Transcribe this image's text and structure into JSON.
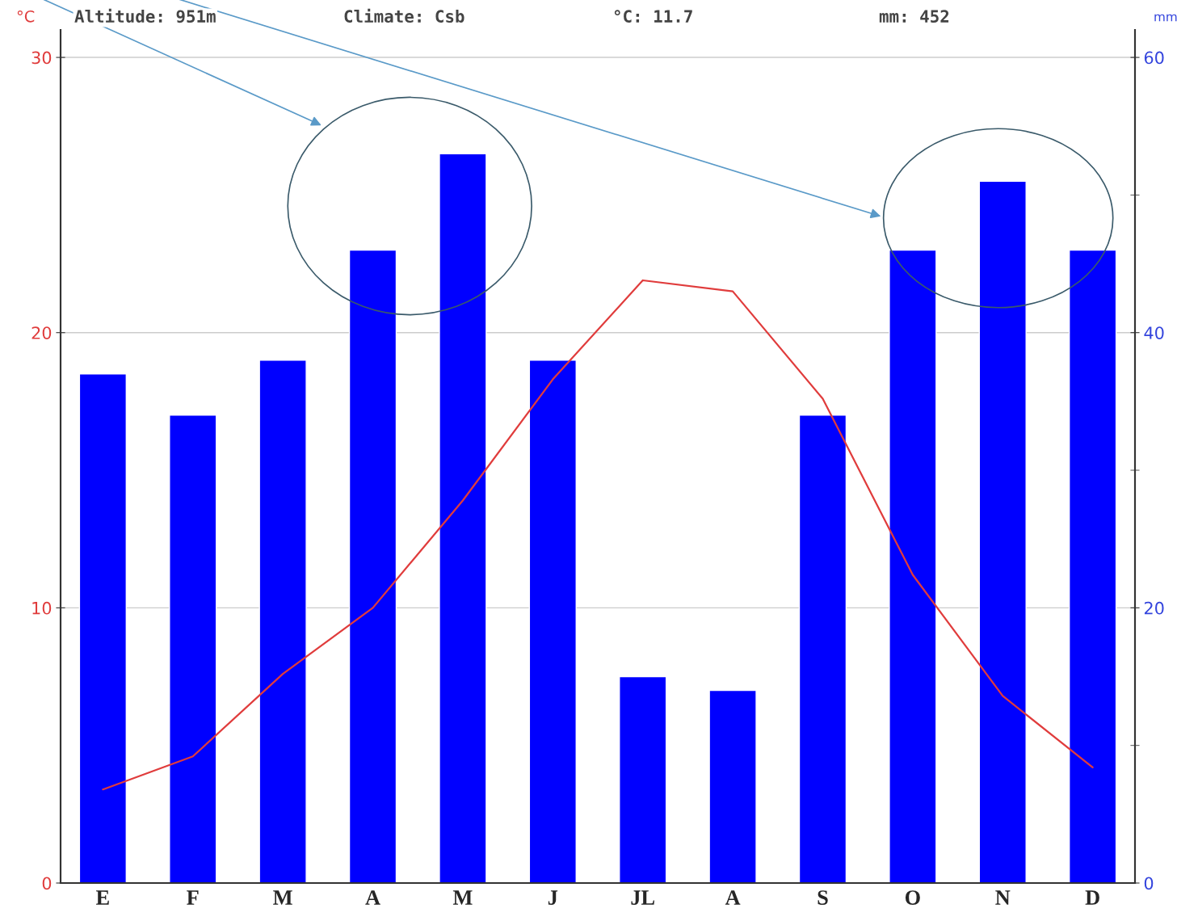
{
  "chart_data": {
    "type": "bar",
    "categories": [
      "E",
      "F",
      "M",
      "A",
      "M",
      "J",
      "JL",
      "A",
      "S",
      "O",
      "N",
      "D"
    ],
    "series": [
      {
        "axis": "y2",
        "color": "#0000ff",
        "values": [
          37,
          34,
          38,
          46,
          53,
          38,
          15,
          14,
          34,
          46,
          51,
          46
        ]
      },
      {
        "type": "line",
        "axis": "y",
        "color": "#e03c3c",
        "values": [
          3.4,
          4.6,
          7.6,
          10.0,
          13.9,
          18.3,
          21.9,
          21.5,
          17.6,
          11.2,
          6.8,
          4.2
        ]
      }
    ],
    "ylabel": "°C",
    "y2label": "mm",
    "ylim": [
      0,
      31
    ],
    "yticks": [
      0,
      10,
      20,
      30
    ],
    "y2lim": [
      0,
      62
    ],
    "y2ticks": [
      0,
      {
        "value": 10,
        "label": null
      },
      20,
      {
        "value": 30,
        "label": null
      },
      40,
      {
        "value": 50,
        "label": null
      },
      60
    ],
    "grid": "y",
    "marker": "none",
    "line_style": "solid",
    "annotations": [
      "Altitude: 951m",
      "Climate: Csb",
      "°C: 11.7",
      "mm: 452"
    ]
  }
}
